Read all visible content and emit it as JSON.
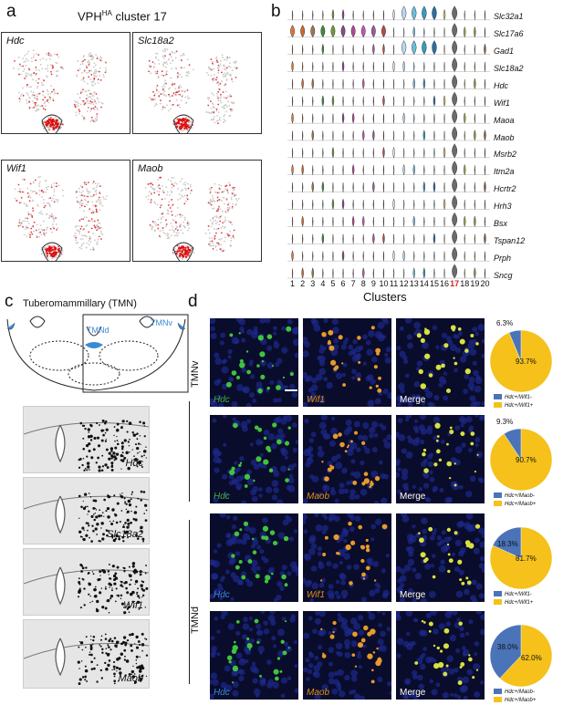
{
  "panels": {
    "a": "a",
    "b": "b",
    "c": "c",
    "d": "d"
  },
  "a": {
    "title_prefix": "VPH",
    "title_sup": "HA",
    "title_suffix": " cluster 17",
    "umaps": [
      "Hdc",
      "Slc18a2",
      "Wif1",
      "Maob"
    ]
  },
  "b": {
    "genes": [
      "Slc32a1",
      "Slc17a6",
      "Gad1",
      "Slc18a2",
      "Hdc",
      "Wif1",
      "Maoa",
      "Maob",
      "Msrb2",
      "Itm2a",
      "Hcrtr2",
      "Hrh3",
      "Bsx",
      "Tspan12",
      "Prph",
      "Sncg"
    ],
    "clusters": [
      "1",
      "2",
      "3",
      "4",
      "5",
      "6",
      "7",
      "8",
      "9",
      "10",
      "11",
      "12",
      "13",
      "14",
      "15",
      "16",
      "17",
      "18",
      "19",
      "20"
    ],
    "xlabel": "Clusters",
    "highlight": "17",
    "colors": [
      "#d9773a",
      "#c86a2e",
      "#9a7a4a",
      "#3f8a3f",
      "#6f9a3a",
      "#8a4a8a",
      "#b04a9a",
      "#c05ab0",
      "#9a5aa0",
      "#b34a4a",
      "#d9e6f2",
      "#bcd6ee",
      "#6fbcd8",
      "#3a9ab8",
      "#2c6fa0",
      "#d8c27a",
      "#6b6b6b",
      "#9ab04a",
      "#7fa04a",
      "#8a5a3a"
    ]
  },
  "c": {
    "title": "Tuberomammillary (TMN)",
    "tmnd": "TMNd",
    "tmnv": "TMNv",
    "ish": [
      "Hdc",
      "Slc18a2",
      "Wif1",
      "Maob"
    ]
  },
  "d": {
    "side_top": "TMNv",
    "side_bottom": "TMNd",
    "rows": [
      {
        "a": "Hdc",
        "b": "Wif1",
        "m": "Merge"
      },
      {
        "a": "Hdc",
        "b": "Maob",
        "m": "Merge"
      },
      {
        "a": "Hdc",
        "b": "Wif1",
        "m": "Merge"
      },
      {
        "a": "Hdc",
        "b": "Maob",
        "m": "Merge"
      }
    ]
  },
  "pies": [
    {
      "neg": "6.3%",
      "pos": "93.7%",
      "neg_frac": 0.063,
      "leg1": "Hdc+/Wif1-",
      "leg2": "Hdc+/Wif1+"
    },
    {
      "neg": "9.3%",
      "pos": "90.7%",
      "neg_frac": 0.093,
      "leg1": "Hdc+/Maob-",
      "leg2": "Hdc+/Maob+"
    },
    {
      "neg": "18.3%",
      "pos": "81.7%",
      "neg_frac": 0.183,
      "leg1": "Hdc+/Wif1-",
      "leg2": "Hdc+/Wif1+"
    },
    {
      "neg": "38.0%",
      "pos": "62.0%",
      "neg_frac": 0.38,
      "leg1": "Hdc+/Maob-",
      "leg2": "Hdc+/Maob+"
    }
  ],
  "colors": {
    "pie_neg": "#4a73b8",
    "pie_pos": "#f5c11a",
    "hdc": "#3fae3f",
    "wif1": "#e0911a",
    "maob": "#e0911a",
    "hdc_blue": "#3a8ad8"
  }
}
